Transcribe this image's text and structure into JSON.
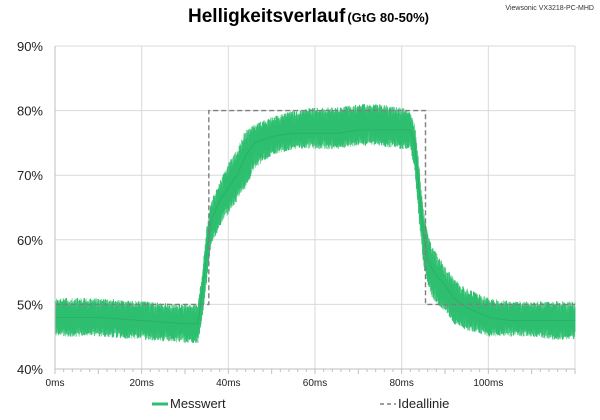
{
  "corner_label": "Viewsonic VX3218-PC-MHD",
  "chart_data": {
    "type": "line",
    "title": "Helligkeitsverlauf",
    "subtitle": "(GtG 80-50%)",
    "xlabel": "",
    "ylabel": "",
    "xlim": [
      0,
      120
    ],
    "ylim": [
      40,
      90
    ],
    "x_ticks": [
      "0ms",
      "20ms",
      "40ms",
      "60ms",
      "80ms",
      "100ms"
    ],
    "y_ticks": [
      "40%",
      "50%",
      "60%",
      "70%",
      "80%",
      "90%"
    ],
    "grid": true,
    "legend": "bottom",
    "colors": {
      "messwert": "#2ebf6f",
      "ideallinie": "#7f7f7f"
    },
    "series": [
      {
        "name": "Messwert",
        "style": "noisy-band",
        "x": [
          0,
          10,
          20,
          30,
          33,
          34,
          35,
          36,
          38,
          40,
          42,
          44,
          46,
          50,
          55,
          60,
          65,
          70,
          75,
          80,
          82,
          83,
          84,
          85,
          86,
          87,
          88,
          90,
          92,
          95,
          100,
          105,
          110,
          115,
          120
        ],
        "y_center": [
          48,
          48,
          47.5,
          47,
          47,
          52,
          58,
          63,
          66,
          68,
          70,
          73,
          75,
          76,
          76.5,
          76.5,
          76.5,
          77,
          77,
          77,
          77,
          75,
          68,
          61,
          57,
          55.5,
          54.5,
          53,
          51,
          49.5,
          48,
          47.5,
          47.5,
          47.5,
          47.5
        ],
        "y_low": [
          45,
          45,
          44.5,
          44,
          44,
          48,
          53,
          59,
          62,
          64,
          66,
          68,
          71,
          73,
          74,
          74,
          74,
          74.5,
          74.5,
          74,
          74,
          71,
          63,
          56,
          53,
          51,
          50,
          49,
          47,
          46,
          45,
          45,
          45,
          44.5,
          44.5
        ],
        "y_high": [
          51,
          51,
          50.5,
          50,
          50,
          55,
          62,
          66,
          69,
          72,
          74,
          77,
          78,
          79,
          80,
          80.5,
          80.5,
          81,
          81,
          80.5,
          80,
          78,
          72,
          65,
          61,
          59,
          58,
          56,
          54,
          52.5,
          51,
          50.5,
          50.5,
          50.5,
          50.5
        ]
      },
      {
        "name": "Ideallinie",
        "style": "dashed",
        "x": [
          0,
          35.5,
          35.5,
          85.5,
          85.5,
          120
        ],
        "y": [
          50,
          50,
          80,
          80,
          50,
          50
        ]
      }
    ]
  }
}
